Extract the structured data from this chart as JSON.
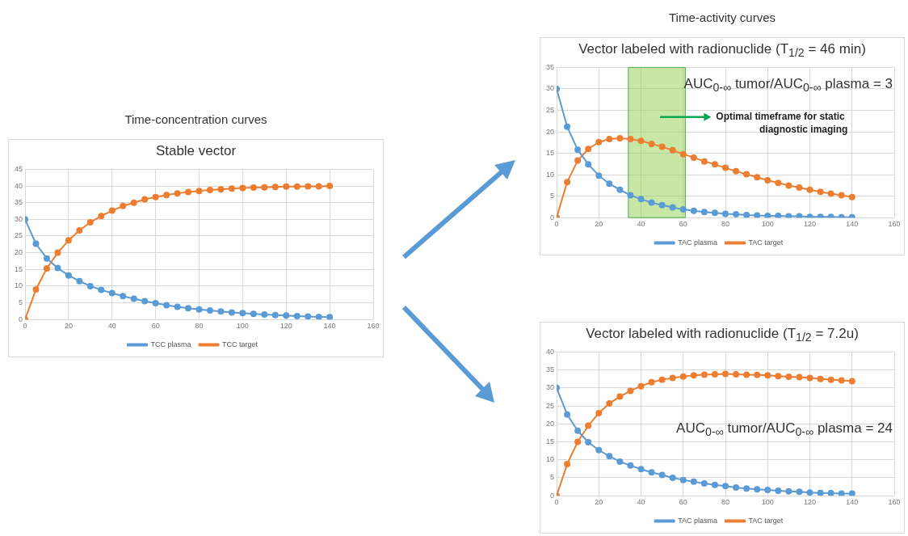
{
  "chart_data": [
    {
      "type": "line",
      "subtitle": "Time-concentration curves",
      "title": "Stable vector",
      "x": [
        0,
        5,
        10,
        15,
        20,
        25,
        30,
        35,
        40,
        45,
        50,
        55,
        60,
        65,
        70,
        75,
        80,
        85,
        90,
        95,
        100,
        105,
        110,
        115,
        120,
        125,
        130,
        135,
        140
      ],
      "series": [
        {
          "name": "TCC plasma",
          "color": "#5b9bd5",
          "values": [
            30,
            22.7,
            18.3,
            15.4,
            13.2,
            11.5,
            10.0,
            8.9,
            7.9,
            7.0,
            6.2,
            5.5,
            4.9,
            4.3,
            3.8,
            3.4,
            3.0,
            2.7,
            2.4,
            2.1,
            1.9,
            1.7,
            1.5,
            1.3,
            1.2,
            1.0,
            0.9,
            0.8,
            0.7
          ]
        },
        {
          "name": "TCC target",
          "color": "#ed7d31",
          "values": [
            0,
            9,
            15.3,
            20,
            23.7,
            26.7,
            29.1,
            31,
            32.6,
            34,
            35,
            36,
            36.7,
            37.3,
            37.8,
            38.2,
            38.5,
            38.8,
            39,
            39.2,
            39.4,
            39.5,
            39.6,
            39.7,
            39.8,
            39.8,
            39.9,
            39.9,
            40
          ]
        }
      ],
      "xlim": [
        0,
        160
      ],
      "xticks": [
        0,
        20,
        40,
        60,
        80,
        100,
        120,
        140,
        160
      ],
      "ylim": [
        0,
        45
      ],
      "yticks": [
        0,
        5,
        10,
        15,
        20,
        25,
        30,
        35,
        40,
        45
      ],
      "grid": true,
      "legend": "bottom",
      "marker": "circle"
    },
    {
      "type": "line",
      "subtitle": "Time-activity curves",
      "title": "Vector labeled with radionuclide (T$_{1/2}$ = 46 min)",
      "x": [
        0,
        5,
        10,
        15,
        20,
        25,
        30,
        35,
        40,
        45,
        50,
        55,
        60,
        65,
        70,
        75,
        80,
        85,
        90,
        95,
        100,
        105,
        110,
        115,
        120,
        125,
        130,
        135,
        140
      ],
      "series": [
        {
          "name": "TAC plasma",
          "color": "#5b9bd5",
          "values": [
            30,
            21.2,
            15.8,
            12.4,
            9.8,
            7.9,
            6.5,
            5.2,
            4.3,
            3.5,
            2.9,
            2.4,
            1.9,
            1.6,
            1.3,
            1.1,
            0.9,
            0.8,
            0.6,
            0.5,
            0.4,
            0.4,
            0.3,
            0.3,
            0.2,
            0.2,
            0.2,
            0.1,
            0.1
          ]
        },
        {
          "name": "TAC target",
          "color": "#ed7d31",
          "values": [
            0,
            8.3,
            13.3,
            16,
            17.6,
            18.3,
            18.5,
            18.3,
            17.9,
            17.2,
            16.5,
            15.7,
            14.8,
            14,
            13.1,
            12.4,
            11.6,
            10.8,
            10.1,
            9.4,
            8.7,
            8.1,
            7.5,
            7,
            6.5,
            6,
            5.6,
            5.2,
            4.8
          ]
        }
      ],
      "xlim": [
        0,
        160
      ],
      "xticks": [
        0,
        20,
        40,
        60,
        80,
        100,
        120,
        140,
        160
      ],
      "ylim": [
        0,
        35
      ],
      "yticks": [
        0,
        5,
        10,
        15,
        20,
        25,
        30,
        35
      ],
      "bands": [
        {
          "axis": "x",
          "from": 34,
          "to": 61,
          "label": "Optimal timeframe for static diagnostic imaging",
          "color": "#92d050"
        }
      ],
      "annotations": [
        "AUC$_{0-∞}$ tumor/AUC$_{0-∞}$ plasma = 3"
      ],
      "grid": true,
      "legend": "bottom",
      "marker": "circle"
    },
    {
      "type": "line",
      "title": "Vector labeled with radionuclide (T$_{1/2}$ = 7.2u)",
      "x": [
        0,
        5,
        10,
        15,
        20,
        25,
        30,
        35,
        40,
        45,
        50,
        55,
        60,
        65,
        70,
        75,
        80,
        85,
        90,
        95,
        100,
        105,
        110,
        115,
        120,
        125,
        130,
        135,
        140
      ],
      "series": [
        {
          "name": "TAC plasma",
          "color": "#5b9bd5",
          "values": [
            30,
            22.6,
            18.1,
            14.9,
            12.7,
            11,
            9.5,
            8.4,
            7.4,
            6.5,
            5.8,
            5,
            4.4,
            3.9,
            3.4,
            3.0,
            2.7,
            2.3,
            2.0,
            1.8,
            1.6,
            1.4,
            1.2,
            1.1,
            0.9,
            0.8,
            0.7,
            0.6,
            0.6
          ]
        },
        {
          "name": "TAC target",
          "color": "#ed7d31",
          "values": [
            0,
            8.8,
            15,
            19.5,
            23,
            25.7,
            27.6,
            29.2,
            30.5,
            31.6,
            32.3,
            32.8,
            33.2,
            33.5,
            33.7,
            33.8,
            33.9,
            33.8,
            33.7,
            33.6,
            33.5,
            33.3,
            33.1,
            33,
            32.8,
            32.5,
            32.3,
            32.1,
            31.9
          ]
        }
      ],
      "xlim": [
        0,
        160
      ],
      "xticks": [
        0,
        20,
        40,
        60,
        80,
        100,
        120,
        140,
        160
      ],
      "ylim": [
        0,
        40
      ],
      "yticks": [
        0,
        5,
        10,
        15,
        20,
        25,
        30,
        35,
        40
      ],
      "annotations": [
        "AUC$_{0-∞}$ tumor/AUC$_{0-∞}$ plasma = 24"
      ],
      "grid": true,
      "legend": "bottom",
      "marker": "circle"
    }
  ]
}
